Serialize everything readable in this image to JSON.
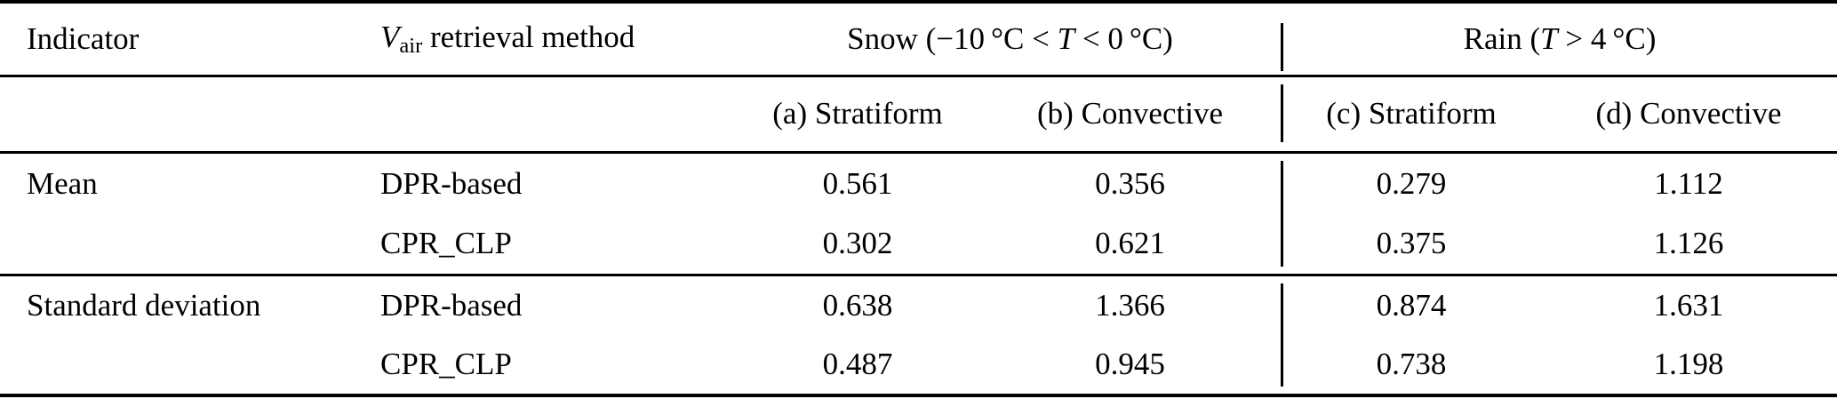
{
  "colors": {
    "background": "#ffffff",
    "text": "#000000",
    "rule": "#000000"
  },
  "table": {
    "header": {
      "indicator": "Indicator",
      "method_symbol": "V",
      "method_subscript": "air",
      "method_rest": " retrieval method",
      "snow_pre": "Snow (−10 °C < ",
      "snow_var": "T",
      "snow_post": " < 0 °C)",
      "rain_pre": "Rain (",
      "rain_var": "T",
      "rain_post": " > 4 °C)"
    },
    "subheader": [
      "(a) Stratiform",
      "(b) Convective",
      "(c) Stratiform",
      "(d) Convective"
    ],
    "sections": [
      {
        "indicator": "Mean",
        "rows": [
          {
            "method": "DPR-based",
            "values": [
              "0.561",
              "0.356",
              "0.279",
              "1.112"
            ]
          },
          {
            "method": "CPR_CLP",
            "values": [
              "0.302",
              "0.621",
              "0.375",
              "1.126"
            ]
          }
        ]
      },
      {
        "indicator": "Standard deviation",
        "rows": [
          {
            "method": "DPR-based",
            "values": [
              "0.638",
              "1.366",
              "0.874",
              "1.631"
            ]
          },
          {
            "method": "CPR_CLP",
            "values": [
              "0.487",
              "0.945",
              "0.738",
              "1.198"
            ]
          }
        ]
      }
    ]
  }
}
